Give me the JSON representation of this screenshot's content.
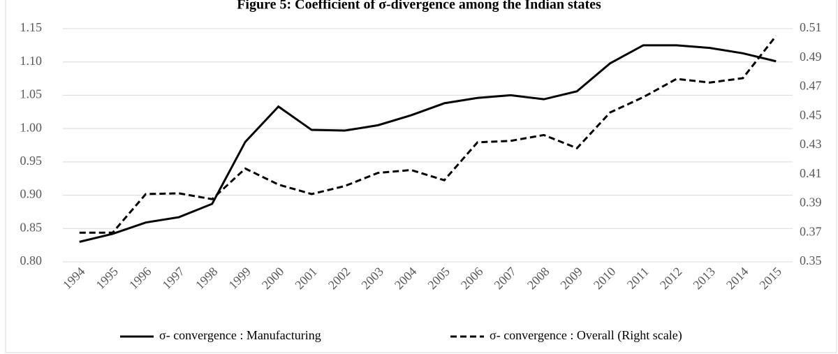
{
  "chart_data": {
    "type": "line",
    "title": "Figure 5: Coefficient of σ-divergence among the Indian states",
    "categories": [
      "1994",
      "1995",
      "1996",
      "1997",
      "1998",
      "1999",
      "2000",
      "2001",
      "2002",
      "2003",
      "2004",
      "2005",
      "2006",
      "2007",
      "2008",
      "2009",
      "2010",
      "2011",
      "2012",
      "2013",
      "2014",
      "2015"
    ],
    "series": [
      {
        "name": "σ- convergence : Manufacturing",
        "color": "#000000",
        "dash": "solid",
        "values": [
          0.83,
          0.842,
          0.859,
          0.867,
          0.887,
          0.98,
          1.033,
          0.998,
          0.997,
          1.005,
          1.02,
          1.038,
          1.046,
          1.05,
          1.044,
          1.056,
          1.098,
          1.125,
          1.125,
          1.121,
          1.113,
          1.101
        ]
      },
      {
        "name": "σ- convergence : Overall (Right scale)",
        "color": "#000000",
        "dash": "dashed",
        "axis": "y2",
        "values": [
          0.37,
          0.37,
          0.3965,
          0.397,
          0.393,
          0.414,
          0.403,
          0.3965,
          0.402,
          0.411,
          0.413,
          0.406,
          0.432,
          0.433,
          0.437,
          0.428,
          0.4525,
          0.463,
          0.4755,
          0.473,
          0.476,
          0.505
        ]
      }
    ],
    "ylim": [
      0.8,
      1.15
    ],
    "yticks": [
      {
        "value": 0.8,
        "label": "0.80"
      },
      0.85,
      {
        "value": 0.9,
        "label": "0.90"
      },
      0.95,
      {
        "value": 1.0,
        "label": "1.00"
      },
      1.05,
      {
        "value": 1.1,
        "label": "1.10"
      },
      1.15
    ],
    "y2lim": [
      0.35,
      0.51
    ],
    "y2ticks": [
      0.35,
      0.37,
      0.39,
      0.41,
      0.43,
      0.45,
      0.47,
      0.49,
      0.51
    ],
    "grid": true,
    "legend": "bottom"
  }
}
